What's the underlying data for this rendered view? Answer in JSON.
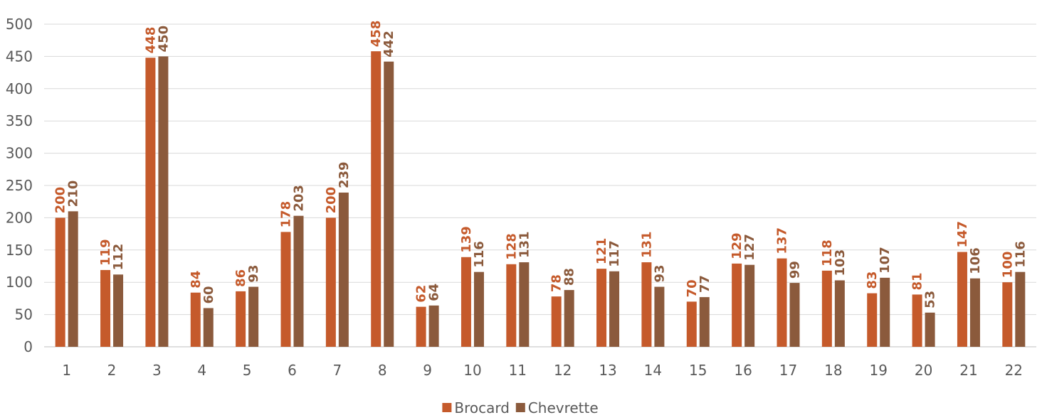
{
  "chart_data": {
    "type": "bar",
    "title": "",
    "xlabel": "",
    "ylabel": "",
    "ylim": [
      0,
      500
    ],
    "yticks": [
      0,
      50,
      100,
      150,
      200,
      250,
      300,
      350,
      400,
      450,
      500
    ],
    "grid": true,
    "legend_position": "bottom",
    "categories": [
      "1",
      "2",
      "3",
      "4",
      "5",
      "6",
      "7",
      "8",
      "9",
      "10",
      "11",
      "12",
      "13",
      "14",
      "15",
      "16",
      "17",
      "18",
      "19",
      "20",
      "21",
      "22"
    ],
    "series": [
      {
        "name": "Brocard",
        "color": "#c55a2b",
        "values": [
          200,
          119,
          448,
          84,
          86,
          178,
          200,
          458,
          62,
          139,
          128,
          78,
          121,
          131,
          70,
          129,
          137,
          118,
          83,
          81,
          147,
          100
        ]
      },
      {
        "name": "Chevrette",
        "color": "#8b5a3c",
        "values": [
          210,
          112,
          450,
          60,
          93,
          203,
          239,
          442,
          64,
          116,
          131,
          88,
          117,
          93,
          77,
          127,
          99,
          103,
          107,
          53,
          106,
          116
        ]
      }
    ]
  }
}
